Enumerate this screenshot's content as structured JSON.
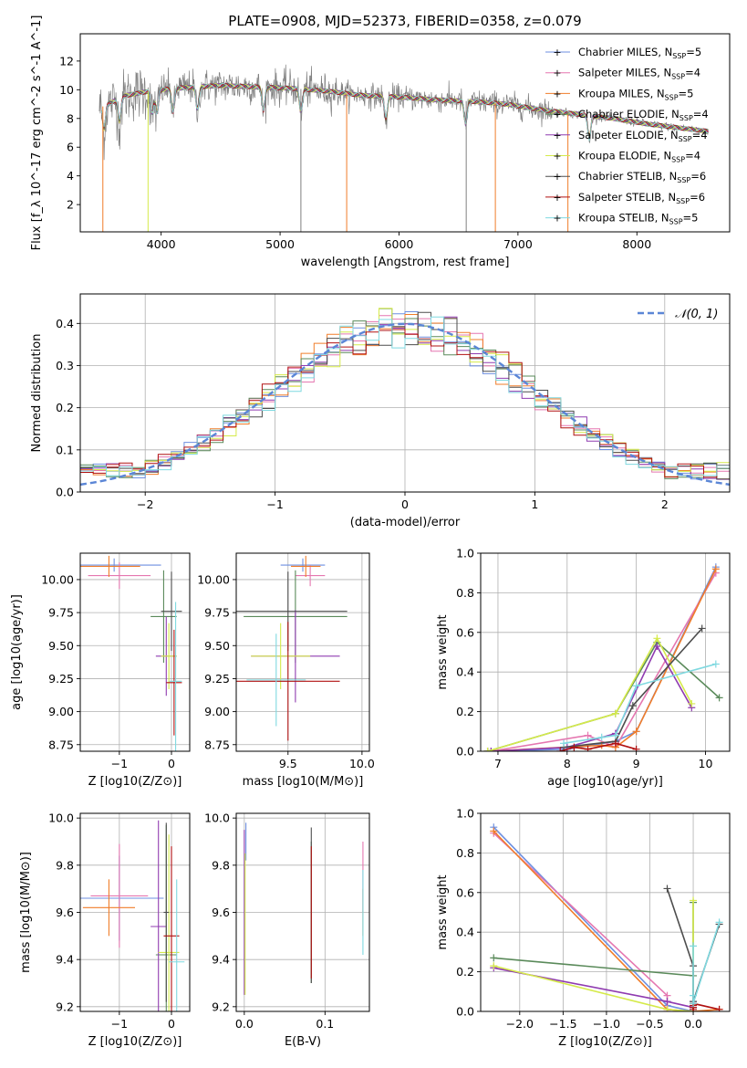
{
  "figure_title": "PLATE=0908, MJD=52373, FIBERID=0358, z=0.079",
  "models": [
    {
      "name": "Chabrier MILES",
      "nssp": "5",
      "color": "#6d8fe0"
    },
    {
      "name": "Salpeter MILES",
      "nssp": "4",
      "color": "#e577b0"
    },
    {
      "name": "Kroupa MILES",
      "nssp": "5",
      "color": "#f07d2a"
    },
    {
      "name": "Chabrier ELODIE",
      "nssp": "4",
      "color": "#5a8a5a"
    },
    {
      "name": "Salpeter ELODIE",
      "nssp": "4",
      "color": "#8f3bb0"
    },
    {
      "name": "Kroupa ELODIE",
      "nssp": "4",
      "color": "#d5ea4a"
    },
    {
      "name": "Chabrier STELIB",
      "nssp": "6",
      "color": "#4d4d4d"
    },
    {
      "name": "Salpeter STELIB",
      "nssp": "6",
      "color": "#b01010"
    },
    {
      "name": "Kroupa STELIB",
      "nssp": "5",
      "color": "#7fd9e0"
    }
  ],
  "chart_data": [
    {
      "id": "spectrum",
      "type": "line",
      "xlabel": "wavelength [Angstrom, rest frame]",
      "ylabel": "Flux [f_λ 10^-17 erg cm^-2 s^-1 A^-1]",
      "xlim": [
        3320,
        8780
      ],
      "ylim": [
        0.1,
        13.9
      ],
      "xticks": [
        4000,
        5000,
        6000,
        7000,
        8000
      ],
      "yticks": [
        2,
        4,
        6,
        8,
        10,
        12
      ],
      "grid": false,
      "legend": "right, inside",
      "continuum_x": [
        3500,
        3700,
        3900,
        4100,
        4300,
        4500,
        4800,
        5100,
        5400,
        5700,
        6000,
        6300,
        6600,
        6900,
        7200,
        7500,
        7800,
        8100,
        8400,
        8600
      ],
      "continuum_y": [
        8.8,
        9.6,
        9.9,
        10.1,
        10.2,
        10.3,
        10.2,
        10.1,
        9.9,
        9.6,
        9.5,
        9.3,
        9.2,
        9.0,
        8.6,
        8.3,
        8.0,
        7.6,
        7.3,
        7.1
      ],
      "absorption_lines": [
        3520,
        3650,
        3925,
        3965,
        4100,
        4305,
        4860,
        5175,
        5890,
        6560,
        7600
      ]
    },
    {
      "id": "residuals",
      "type": "histogram",
      "xlabel": "(data-model)/error",
      "ylabel": "Normed distribution",
      "xlim": [
        -2.5,
        2.5
      ],
      "ylim": [
        0,
        0.47
      ],
      "xticks": [
        -2,
        -1,
        0,
        1,
        2
      ],
      "yticks": [
        0.0,
        0.1,
        0.2,
        0.3,
        0.4
      ],
      "grid": true,
      "reference_curve": "N(0,1)",
      "legend": "top-right",
      "bin_width": 0.1
    },
    {
      "id": "age_vs_Z",
      "type": "scatter",
      "xlabel": "Z [log10(Z/Z⊙)]",
      "ylabel": "age  [log10(age/yr)]",
      "xlim": [
        -1.75,
        0.35
      ],
      "ylim": [
        8.7,
        10.2
      ],
      "xticks": [
        -1,
        0
      ],
      "yticks": [
        8.75,
        9.0,
        9.25,
        9.5,
        9.75,
        10.0
      ],
      "grid": true,
      "points": [
        {
          "model": 0,
          "x": -1.1,
          "y": 10.11,
          "xerr": 0.9,
          "yerr": 0.05
        },
        {
          "model": 1,
          "x": -1.0,
          "y": 10.03,
          "xerr": 0.6,
          "yerr": 0.1
        },
        {
          "model": 2,
          "x": -1.2,
          "y": 10.1,
          "xerr": 0.6,
          "yerr": 0.08
        },
        {
          "model": 3,
          "x": -0.15,
          "y": 9.72,
          "xerr": 0.25,
          "yerr": 0.35
        },
        {
          "model": 4,
          "x": -0.1,
          "y": 9.42,
          "xerr": 0.2,
          "yerr": 0.3
        },
        {
          "model": 5,
          "x": -0.05,
          "y": 9.42,
          "xerr": 0.15,
          "yerr": 0.25
        },
        {
          "model": 6,
          "x": 0.0,
          "y": 9.76,
          "xerr": 0.2,
          "yerr": 0.3
        },
        {
          "model": 7,
          "x": 0.05,
          "y": 9.22,
          "xerr": 0.15,
          "yerr": 0.4
        },
        {
          "model": 8,
          "x": 0.08,
          "y": 9.23,
          "xerr": 0.12,
          "yerr": 0.6
        }
      ]
    },
    {
      "id": "age_vs_mass",
      "type": "scatter",
      "xlabel": "mass [log10(M/M⊙)]",
      "ylabel": "",
      "xlim": [
        9.15,
        10.05
      ],
      "ylim": [
        8.7,
        10.2
      ],
      "xticks": [
        9.5,
        10.0
      ],
      "yticks": [
        8.75,
        9.0,
        9.25,
        9.5,
        9.75,
        10.0
      ],
      "grid": true,
      "points": [
        {
          "model": 0,
          "x": 9.6,
          "y": 10.11,
          "xerr": 0.15,
          "yerr": 0.05
        },
        {
          "model": 1,
          "x": 9.65,
          "y": 10.03,
          "xerr": 0.1,
          "yerr": 0.08
        },
        {
          "model": 2,
          "x": 9.62,
          "y": 10.1,
          "xerr": 0.1,
          "yerr": 0.08
        },
        {
          "model": 3,
          "x": 9.55,
          "y": 9.72,
          "xerr": 0.35,
          "yerr": 0.35
        },
        {
          "model": 4,
          "x": 9.55,
          "y": 9.42,
          "xerr": 0.3,
          "yerr": 0.35
        },
        {
          "model": 5,
          "x": 9.45,
          "y": 9.42,
          "xerr": 0.2,
          "yerr": 0.25
        },
        {
          "model": 6,
          "x": 9.5,
          "y": 9.76,
          "xerr": 0.4,
          "yerr": 0.3
        },
        {
          "model": 7,
          "x": 9.5,
          "y": 9.23,
          "xerr": 0.35,
          "yerr": 0.45
        },
        {
          "model": 8,
          "x": 9.42,
          "y": 9.24,
          "xerr": 0.2,
          "yerr": 0.35
        }
      ]
    },
    {
      "id": "weight_vs_age",
      "type": "line",
      "xlabel": "age  [log10(age/yr)]",
      "ylabel": "mass weight",
      "xlim": [
        6.75,
        10.35
      ],
      "ylim": [
        0,
        1
      ],
      "xticks": [
        7,
        8,
        9,
        10
      ],
      "yticks": [
        0.0,
        0.2,
        0.4,
        0.6,
        0.8,
        1.0
      ],
      "grid": true,
      "series": [
        {
          "model": 0,
          "x": [
            6.85,
            8.0,
            8.7,
            9.0,
            10.15
          ],
          "y": [
            0.0,
            0.01,
            0.05,
            0.1,
            0.93
          ]
        },
        {
          "model": 1,
          "x": [
            6.9,
            8.3,
            8.7,
            10.15
          ],
          "y": [
            0.0,
            0.08,
            0.02,
            0.9
          ]
        },
        {
          "model": 2,
          "x": [
            6.85,
            8.5,
            8.7,
            9.0,
            10.15
          ],
          "y": [
            0.0,
            0.03,
            0.02,
            0.1,
            0.92
          ]
        },
        {
          "model": 3,
          "x": [
            6.85,
            8.7,
            9.3,
            10.2
          ],
          "y": [
            0.0,
            0.19,
            0.55,
            0.27
          ]
        },
        {
          "model": 4,
          "x": [
            6.9,
            8.0,
            8.7,
            9.3,
            9.8
          ],
          "y": [
            0.0,
            0.02,
            0.09,
            0.53,
            0.22
          ]
        },
        {
          "model": 5,
          "x": [
            6.85,
            8.7,
            9.3,
            9.8
          ],
          "y": [
            0.0,
            0.19,
            0.57,
            0.24
          ]
        },
        {
          "model": 6,
          "x": [
            7.95,
            8.7,
            8.95,
            9.95
          ],
          "y": [
            0.02,
            0.05,
            0.23,
            0.62
          ]
        },
        {
          "model": 7,
          "x": [
            7.9,
            8.1,
            8.3,
            8.7,
            9.0
          ],
          "y": [
            0.0,
            0.02,
            0.01,
            0.04,
            0.01
          ]
        },
        {
          "model": 8,
          "x": [
            7.95,
            8.5,
            8.7,
            9.0,
            10.15
          ],
          "y": [
            0.04,
            0.07,
            0.08,
            0.33,
            0.44
          ]
        }
      ]
    },
    {
      "id": "mass_vs_Z",
      "type": "scatter",
      "xlabel": "Z [log10(Z/Z⊙)]",
      "ylabel": "mass [log10(M/M⊙)]",
      "xlim": [
        -1.75,
        0.35
      ],
      "ylim": [
        9.18,
        10.02
      ],
      "xticks": [
        -1,
        0
      ],
      "yticks": [
        9.2,
        9.4,
        9.6,
        9.8,
        10.0
      ],
      "grid": true,
      "points": [
        {
          "model": 0,
          "x": -1.0,
          "y": 9.66,
          "xerr": 0.85,
          "yerr": 0.18
        },
        {
          "model": 1,
          "x": -1.0,
          "y": 9.67,
          "xerr": 0.55,
          "yerr": 0.22
        },
        {
          "model": 2,
          "x": -1.2,
          "y": 9.62,
          "xerr": 0.5,
          "yerr": 0.12
        },
        {
          "model": 3,
          "x": -0.1,
          "y": 9.42,
          "xerr": 0.2,
          "yerr": 0.55
        },
        {
          "model": 4,
          "x": -0.25,
          "y": 9.54,
          "xerr": 0.15,
          "yerr": 0.45
        },
        {
          "model": 5,
          "x": -0.05,
          "y": 9.43,
          "xerr": 0.2,
          "yerr": 0.5
        },
        {
          "model": 6,
          "x": -0.1,
          "y": 9.6,
          "xerr": 0.05,
          "yerr": 0.38
        },
        {
          "model": 7,
          "x": 0.0,
          "y": 9.5,
          "xerr": 0.15,
          "yerr": 0.38
        },
        {
          "model": 8,
          "x": 0.1,
          "y": 9.39,
          "xerr": 0.15,
          "yerr": 0.35
        }
      ]
    },
    {
      "id": "mass_vs_ebv",
      "type": "scatter",
      "xlabel": "E(B-V)",
      "ylabel": "",
      "xlim": [
        -0.01,
        0.155
      ],
      "ylim": [
        9.18,
        10.02
      ],
      "xticks": [
        0.0,
        0.1
      ],
      "yticks": [
        9.2,
        9.4,
        9.6,
        9.8,
        10.0
      ],
      "grid": true,
      "points": [
        {
          "model": 0,
          "x": 0.002,
          "y": 9.9,
          "xerr": 0,
          "yerr": 0.08
        },
        {
          "model": 1,
          "x": 0.147,
          "y": 9.75,
          "xerr": 0,
          "yerr": 0.15
        },
        {
          "model": 2,
          "x": 0.147,
          "y": 9.6,
          "xerr": 0,
          "yerr": 0.1
        },
        {
          "model": 3,
          "x": 0.083,
          "y": 9.6,
          "xerr": 0,
          "yerr": 0.3
        },
        {
          "model": 4,
          "x": 0.0,
          "y": 9.6,
          "xerr": 0,
          "yerr": 0.35
        },
        {
          "model": 5,
          "x": 0.001,
          "y": 9.55,
          "xerr": 0,
          "yerr": 0.3
        },
        {
          "model": 6,
          "x": 0.083,
          "y": 9.63,
          "xerr": 0,
          "yerr": 0.33
        },
        {
          "model": 7,
          "x": 0.083,
          "y": 9.6,
          "xerr": 0,
          "yerr": 0.28
        },
        {
          "model": 8,
          "x": 0.147,
          "y": 9.6,
          "xerr": 0,
          "yerr": 0.18
        }
      ]
    },
    {
      "id": "weight_vs_Z",
      "type": "line",
      "xlabel": "Z [log10(Z/Z⊙)]",
      "ylabel": "mass weight",
      "xlim": [
        -2.45,
        0.42
      ],
      "ylim": [
        0,
        1
      ],
      "xticks": [
        -2.0,
        -1.5,
        -1.0,
        -0.5,
        0.0
      ],
      "yticks": [
        0.0,
        0.2,
        0.4,
        0.6,
        0.8,
        1.0
      ],
      "grid": true,
      "series": [
        {
          "model": 0,
          "x": [
            -2.3,
            -0.3,
            0.0,
            0.0
          ],
          "y": [
            0.93,
            0.03,
            0.0,
            0.05
          ]
        },
        {
          "model": 1,
          "x": [
            -2.3,
            -0.3,
            -0.3
          ],
          "y": [
            0.9,
            0.08,
            0.0
          ]
        },
        {
          "model": 2,
          "x": [
            -2.3,
            -0.3,
            0.0,
            0.3
          ],
          "y": [
            0.91,
            0.01,
            0.0,
            0.01
          ]
        },
        {
          "model": 3,
          "x": [
            -2.3,
            0.0,
            0.0
          ],
          "y": [
            0.27,
            0.18,
            0.55
          ]
        },
        {
          "model": 4,
          "x": [
            -2.3,
            -0.3,
            0.0,
            0.0
          ],
          "y": [
            0.22,
            0.05,
            0.02,
            0.0
          ]
        },
        {
          "model": 5,
          "x": [
            -2.3,
            -0.3,
            0.0,
            0.0
          ],
          "y": [
            0.23,
            0.01,
            0.0,
            0.56
          ]
        },
        {
          "model": 6,
          "x": [
            -0.3,
            0.0,
            0.0,
            0.3
          ],
          "y": [
            0.62,
            0.23,
            0.05,
            0.44
          ]
        },
        {
          "model": 7,
          "x": [
            0.0,
            0.0,
            0.0,
            0.0,
            0.3
          ],
          "y": [
            0.01,
            0.02,
            0.03,
            0.04,
            0.01
          ]
        },
        {
          "model": 8,
          "x": [
            0.0,
            0.0,
            0.0,
            0.3
          ],
          "y": [
            0.08,
            0.33,
            0.04,
            0.45
          ]
        }
      ]
    }
  ]
}
